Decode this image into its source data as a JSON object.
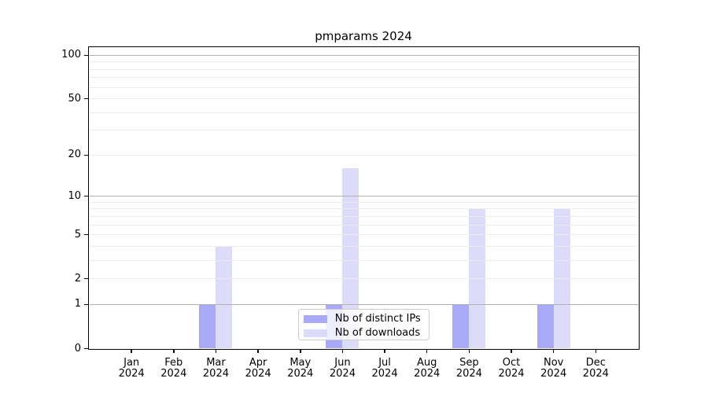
{
  "chart_data": {
    "type": "bar",
    "title": "pmparams 2024",
    "categories": [
      "Jan",
      "Feb",
      "Mar",
      "Apr",
      "May",
      "Jun",
      "Jul",
      "Aug",
      "Sep",
      "Oct",
      "Nov",
      "Dec"
    ],
    "category_sublabel": "2024",
    "series": [
      {
        "name": "Nb of distinct IPs",
        "color": "#a9a9fa",
        "values": [
          0,
          0,
          1,
          0,
          0,
          1,
          0,
          0,
          1,
          0,
          1,
          0
        ]
      },
      {
        "name": "Nb of downloads",
        "color": "#dcdcfa",
        "values": [
          0,
          0,
          4,
          0,
          0,
          16,
          0,
          0,
          8,
          0,
          8,
          0
        ]
      }
    ],
    "xlabel": "",
    "ylabel": "",
    "yscale": "log10(1+v)",
    "yticks": [
      0,
      1,
      2,
      5,
      10,
      20,
      50,
      100
    ],
    "ylim": [
      0,
      113
    ],
    "grid": {
      "orientation": "horizontal",
      "major_values": [
        1,
        10,
        100
      ],
      "minor_values": [
        2,
        3,
        4,
        5,
        6,
        7,
        8,
        9,
        20,
        30,
        40,
        50,
        60,
        70,
        80,
        90
      ],
      "major_color": "#b0b0b0",
      "minor_color": "#ececec"
    },
    "legend": {
      "position": "lower center"
    }
  }
}
